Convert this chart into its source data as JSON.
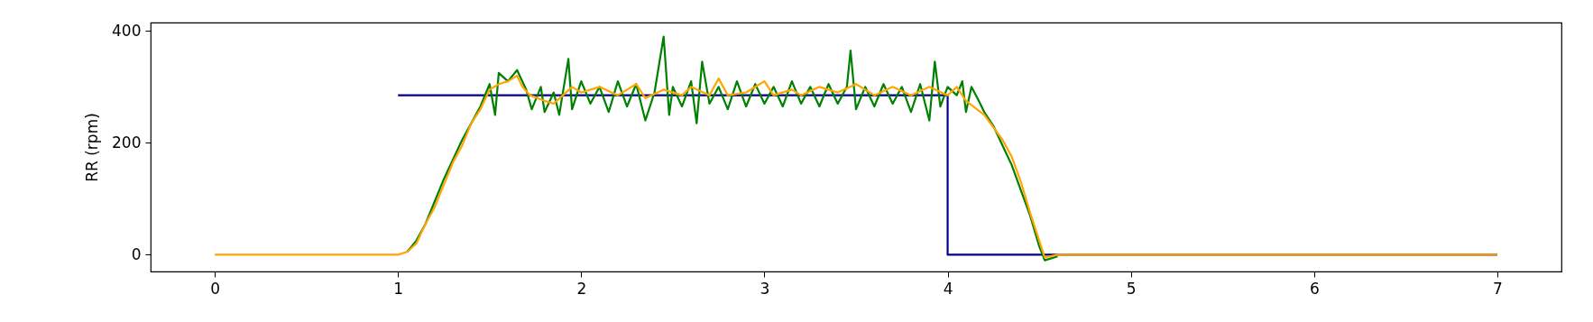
{
  "chart_data": {
    "type": "line",
    "ylabel": "RR (rpm)",
    "xlim": [
      -0.35,
      7.35
    ],
    "ylim": [
      -30,
      415
    ],
    "xticks": [
      0,
      1,
      2,
      3,
      4,
      5,
      6,
      7
    ],
    "yticks": [
      0,
      200,
      400
    ],
    "grid": false,
    "series": [
      {
        "color": "#00008b",
        "x": [
          1,
          4,
          4,
          7
        ],
        "values": [
          285,
          285,
          0,
          0
        ]
      },
      {
        "color": "#008000",
        "x": [
          1.05,
          1.1,
          1.15,
          1.2,
          1.25,
          1.3,
          1.35,
          1.4,
          1.45,
          1.5,
          1.53,
          1.55,
          1.6,
          1.65,
          1.7,
          1.73,
          1.78,
          1.8,
          1.85,
          1.88,
          1.93,
          1.95,
          2.0,
          2.05,
          2.1,
          2.15,
          2.2,
          2.25,
          2.3,
          2.35,
          2.4,
          2.45,
          2.48,
          2.5,
          2.55,
          2.6,
          2.63,
          2.66,
          2.7,
          2.75,
          2.8,
          2.85,
          2.9,
          2.95,
          3.0,
          3.05,
          3.1,
          3.15,
          3.2,
          3.25,
          3.3,
          3.35,
          3.4,
          3.45,
          3.47,
          3.5,
          3.55,
          3.6,
          3.65,
          3.7,
          3.75,
          3.8,
          3.85,
          3.9,
          3.93,
          3.96,
          4.0,
          4.05,
          4.08,
          4.1,
          4.13,
          4.17,
          4.2,
          4.25,
          4.3,
          4.35,
          4.4,
          4.45,
          4.5,
          4.53,
          4.6
        ],
        "values": [
          5,
          25,
          55,
          95,
          135,
          170,
          205,
          235,
          265,
          305,
          250,
          325,
          310,
          330,
          295,
          260,
          300,
          255,
          290,
          250,
          350,
          260,
          310,
          270,
          300,
          255,
          310,
          265,
          305,
          240,
          290,
          390,
          250,
          300,
          265,
          310,
          235,
          345,
          270,
          300,
          260,
          310,
          265,
          305,
          270,
          300,
          265,
          310,
          270,
          300,
          265,
          305,
          270,
          300,
          365,
          260,
          300,
          265,
          305,
          270,
          300,
          255,
          305,
          240,
          345,
          265,
          300,
          285,
          310,
          255,
          300,
          275,
          255,
          230,
          195,
          160,
          115,
          70,
          15,
          -10,
          -3
        ]
      },
      {
        "color": "#ffa500",
        "x": [
          0,
          1.0,
          1.05,
          1.1,
          1.15,
          1.2,
          1.25,
          1.3,
          1.35,
          1.4,
          1.45,
          1.5,
          1.55,
          1.6,
          1.65,
          1.68,
          1.72,
          1.8,
          1.85,
          1.9,
          1.95,
          2.0,
          2.1,
          2.2,
          2.3,
          2.35,
          2.45,
          2.55,
          2.6,
          2.7,
          2.75,
          2.8,
          2.9,
          3.0,
          3.05,
          3.15,
          3.2,
          3.3,
          3.4,
          3.5,
          3.6,
          3.7,
          3.8,
          3.9,
          4.0,
          4.05,
          4.1,
          4.2,
          4.3,
          4.35,
          4.4,
          4.45,
          4.5,
          4.53,
          4.6,
          7
        ],
        "values": [
          0,
          0,
          5,
          20,
          55,
          85,
          125,
          165,
          195,
          235,
          260,
          295,
          305,
          310,
          320,
          300,
          285,
          275,
          270,
          285,
          300,
          290,
          300,
          285,
          305,
          280,
          295,
          285,
          300,
          285,
          315,
          285,
          290,
          310,
          285,
          295,
          285,
          300,
          290,
          305,
          285,
          300,
          285,
          300,
          285,
          300,
          275,
          250,
          205,
          175,
          130,
          75,
          25,
          -5,
          0,
          0
        ]
      }
    ]
  }
}
